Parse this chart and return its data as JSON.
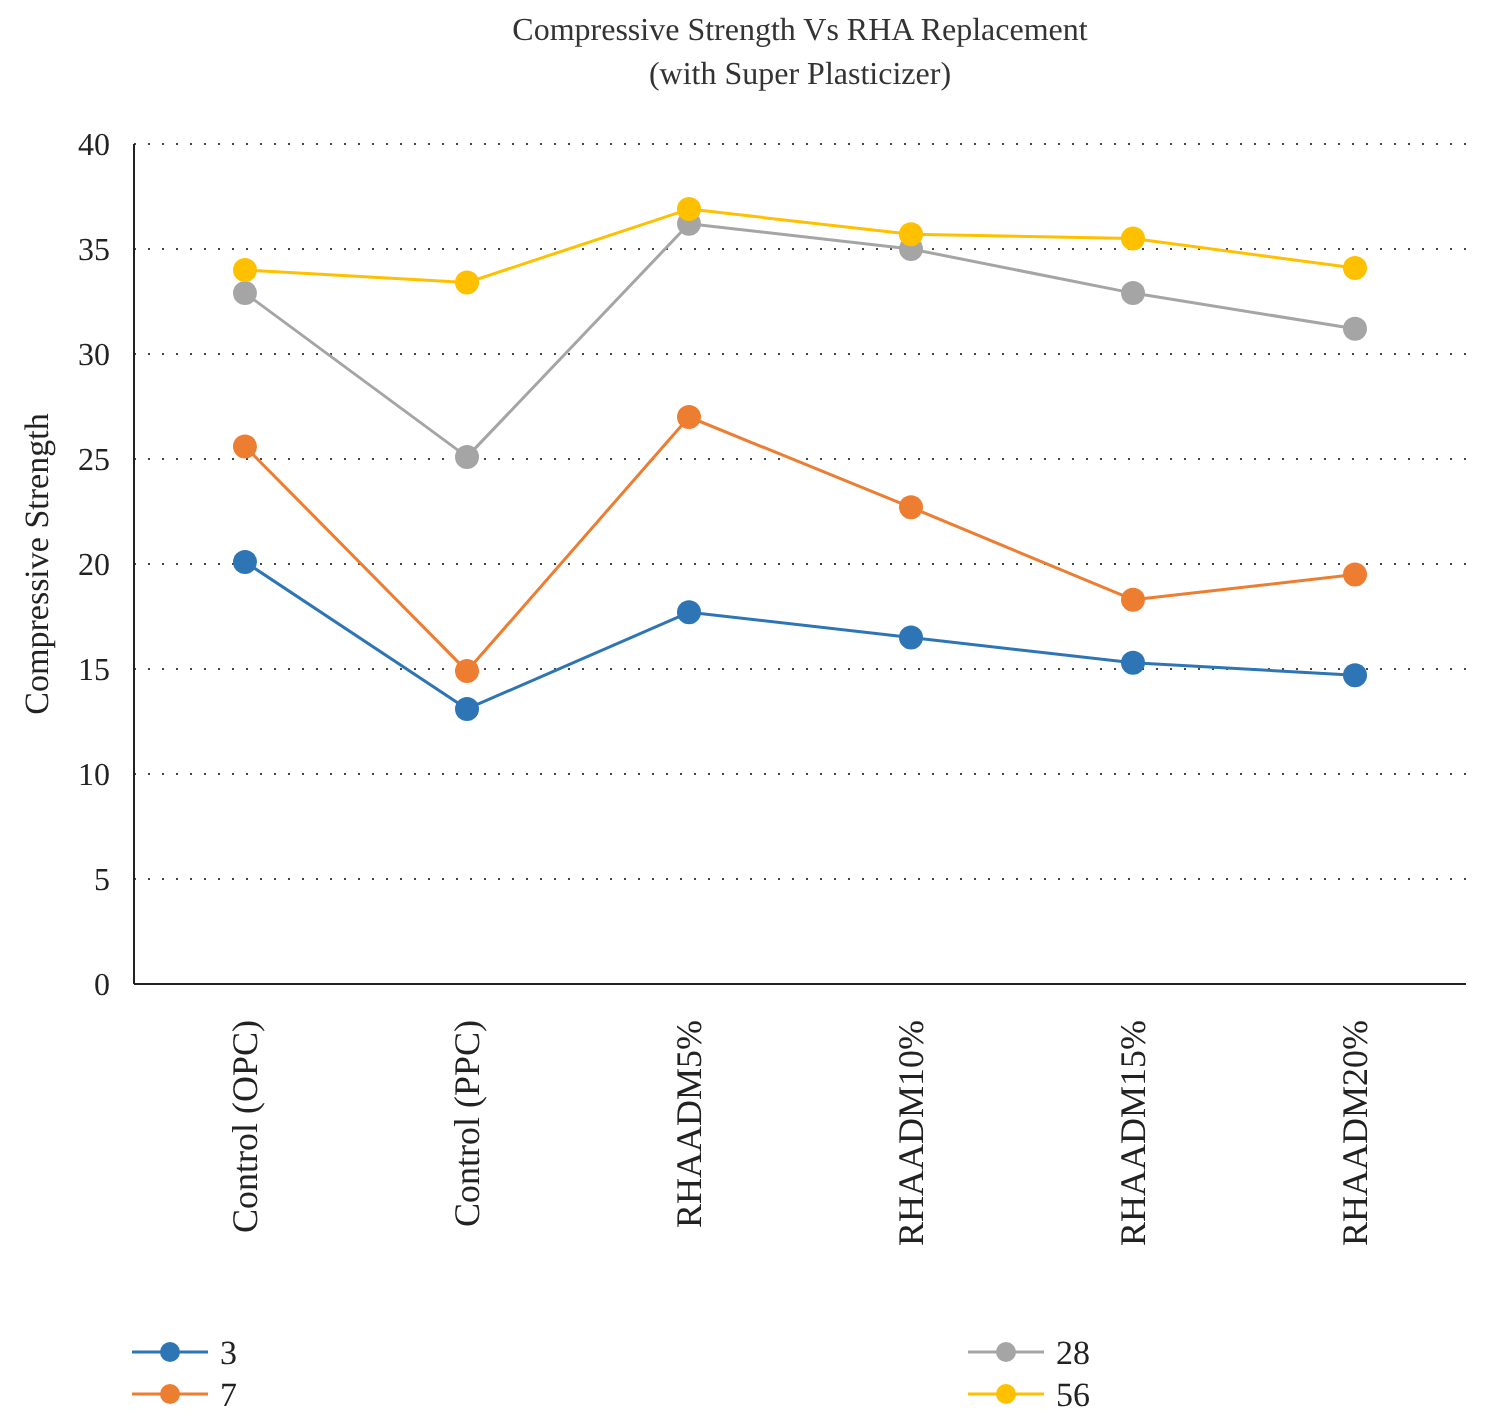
{
  "chart_data": {
    "type": "line",
    "title": "Compressive Strength Vs RHA Replacement",
    "subtitle": "(with Super Plasticizer)",
    "ylabel": "Compressive Strength",
    "categories": [
      "Control (OPC)",
      "Control (PPC)",
      "RHAADM5%",
      "RHAADM10%",
      "RHAADM15%",
      "RHAADM20%"
    ],
    "series": [
      {
        "name": "3",
        "color": "#2e75b6",
        "values": [
          20.1,
          13.1,
          17.7,
          16.5,
          15.3,
          14.7
        ]
      },
      {
        "name": "7",
        "color": "#ed7d31",
        "values": [
          25.6,
          14.9,
          27.0,
          22.7,
          18.3,
          19.5
        ]
      },
      {
        "name": "28",
        "color": "#a5a5a5",
        "values": [
          32.9,
          25.1,
          36.2,
          35.0,
          32.9,
          31.2
        ]
      },
      {
        "name": "56",
        "color": "#ffc000",
        "values": [
          34.0,
          33.4,
          36.9,
          35.7,
          35.5,
          34.1
        ]
      }
    ],
    "ylim": [
      0,
      40
    ],
    "yticks": [
      0,
      5,
      10,
      15,
      20,
      25,
      30,
      35,
      40
    ],
    "grid": "y",
    "legend": "bottom",
    "marker": "circle",
    "line_style": "solid"
  }
}
